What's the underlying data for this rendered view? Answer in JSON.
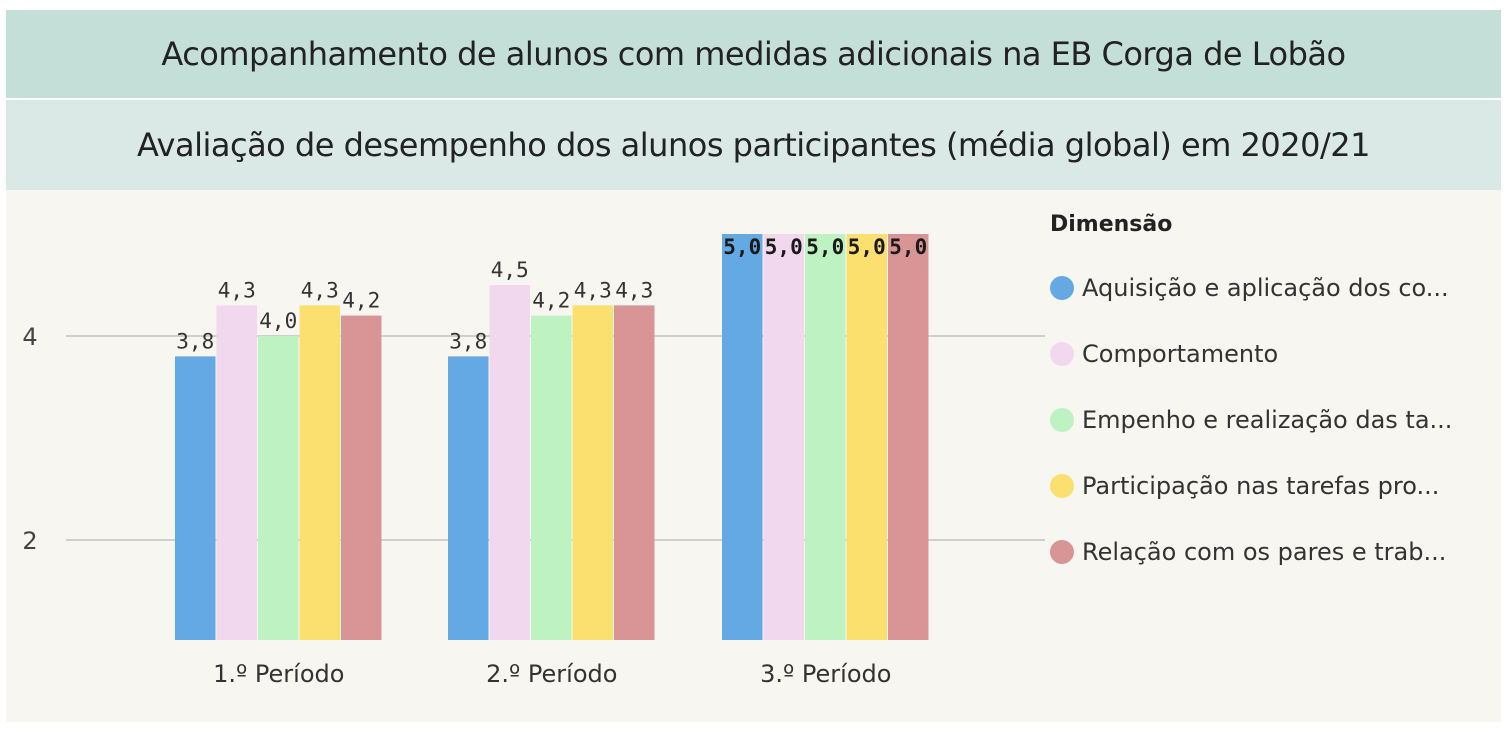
{
  "header": {
    "title": "Acompanhamento de alunos com medidas adicionais na EB Corga de Lobão",
    "subtitle": "Avaliação de desempenho dos alunos participantes (média global) em 2020/21"
  },
  "legend": {
    "title": "Dimensão",
    "items": [
      {
        "label": "Aquisição e aplicação dos co...",
        "color": "#64a8e4"
      },
      {
        "label": "Comportamento",
        "color": "#f2d8ef"
      },
      {
        "label": "Empenho e realização das ta...",
        "color": "#bff2c2"
      },
      {
        "label": "Participação nas tarefas pro...",
        "color": "#fbe070"
      },
      {
        "label": "Relação com os pares e trab...",
        "color": "#d99595"
      }
    ]
  },
  "chart_data": {
    "type": "bar",
    "categories": [
      "1.º Período",
      "2.º Período",
      "3.º Período"
    ],
    "series": [
      {
        "name": "Aquisição e aplicação dos co...",
        "values": [
          3.8,
          3.8,
          5.0
        ],
        "labels": [
          "3,8",
          "3,8",
          "5,0"
        ]
      },
      {
        "name": "Comportamento",
        "values": [
          4.3,
          4.5,
          5.0
        ],
        "labels": [
          "4,3",
          "4,5",
          "5,0"
        ]
      },
      {
        "name": "Empenho e realização das ta...",
        "values": [
          4.0,
          4.2,
          5.0
        ],
        "labels": [
          "4,0",
          "4,2",
          "5,0"
        ]
      },
      {
        "name": "Participação nas tarefas pro...",
        "values": [
          4.3,
          4.3,
          5.0
        ],
        "labels": [
          "4,3",
          "4,3",
          "5,0"
        ]
      },
      {
        "name": "Relação com os pares e trab...",
        "values": [
          4.2,
          4.3,
          5.0
        ],
        "labels": [
          "4,2",
          "4,3",
          "5,0"
        ]
      }
    ],
    "yticks": [
      {
        "value": 2,
        "label": "2"
      },
      {
        "value": 4,
        "label": "4"
      }
    ],
    "ylim": [
      1,
      5
    ],
    "grid": true,
    "legend_position": "right"
  }
}
